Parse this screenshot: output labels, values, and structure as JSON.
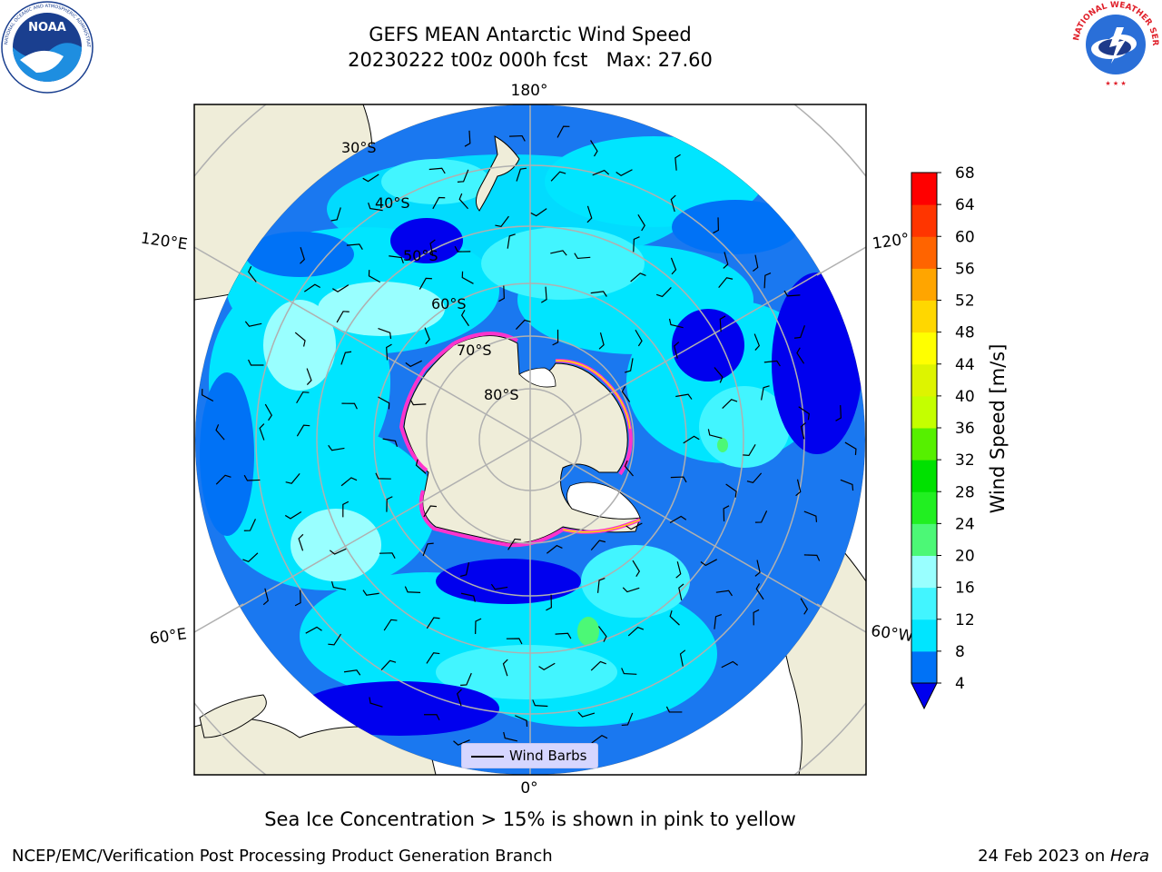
{
  "header": {
    "title_line1": "GEFS MEAN Antarctic Wind Speed",
    "title_line2": "20230222 t00z 000h fcst   Max: 27.60"
  },
  "logos": {
    "left": {
      "name": "NOAA",
      "ring_text": "NATIONAL OCEANIC AND ATMOSPHERIC ADMINISTRATION",
      "bottom_text": "U.S. DEPARTMENT OF COMMERCE"
    },
    "right": {
      "name": "National Weather Service",
      "ring_text": "NATIONAL WEATHER SERVICE"
    }
  },
  "map": {
    "projection": "south-polar-stereographic",
    "longitude_labels": {
      "top": "180°",
      "bottom": "0°",
      "upper_left": "120°E",
      "upper_right": "120°",
      "lower_left": "60°E",
      "lower_right": "60°W"
    },
    "latitude_labels": [
      "30°S",
      "40°S",
      "50°S",
      "60°S",
      "70°S",
      "80°S"
    ],
    "legend": {
      "wind_barbs": "Wind Barbs"
    },
    "field": "wind speed (m/s) color-filled with wind barbs; sea ice edge in pink to yellow"
  },
  "colorbar": {
    "label": "Wind Speed [m/s]",
    "ticks": [
      "4",
      "8",
      "12",
      "16",
      "20",
      "24",
      "28",
      "32",
      "36",
      "40",
      "44",
      "48",
      "52",
      "56",
      "60",
      "64",
      "68"
    ],
    "colors": [
      "#0000ee",
      "#0072f6",
      "#00e5ff",
      "#42f5ff",
      "#99ffff",
      "#4cf876",
      "#21ef21",
      "#00e100",
      "#56f000",
      "#c4ff00",
      "#ddf400",
      "#ffff00",
      "#ffd700",
      "#ffa500",
      "#ff6400",
      "#ff3500",
      "#ff0000"
    ]
  },
  "colors": {
    "land": "#efedd9",
    "ocean_base": "#1a78f0",
    "ocean_light": "#00e8ff",
    "gridline": "#b0b0b0",
    "ice_edge_pink": "#ff33cc",
    "ice_edge_yellow": "#ffe100"
  },
  "caption": "Sea Ice Concentration > 15% is shown in pink to yellow",
  "footer": {
    "left": "NCEP/EMC/Verification Post Processing Product Generation Branch",
    "right_prefix": "24 Feb 2023 on ",
    "right_italic": "Hera"
  }
}
